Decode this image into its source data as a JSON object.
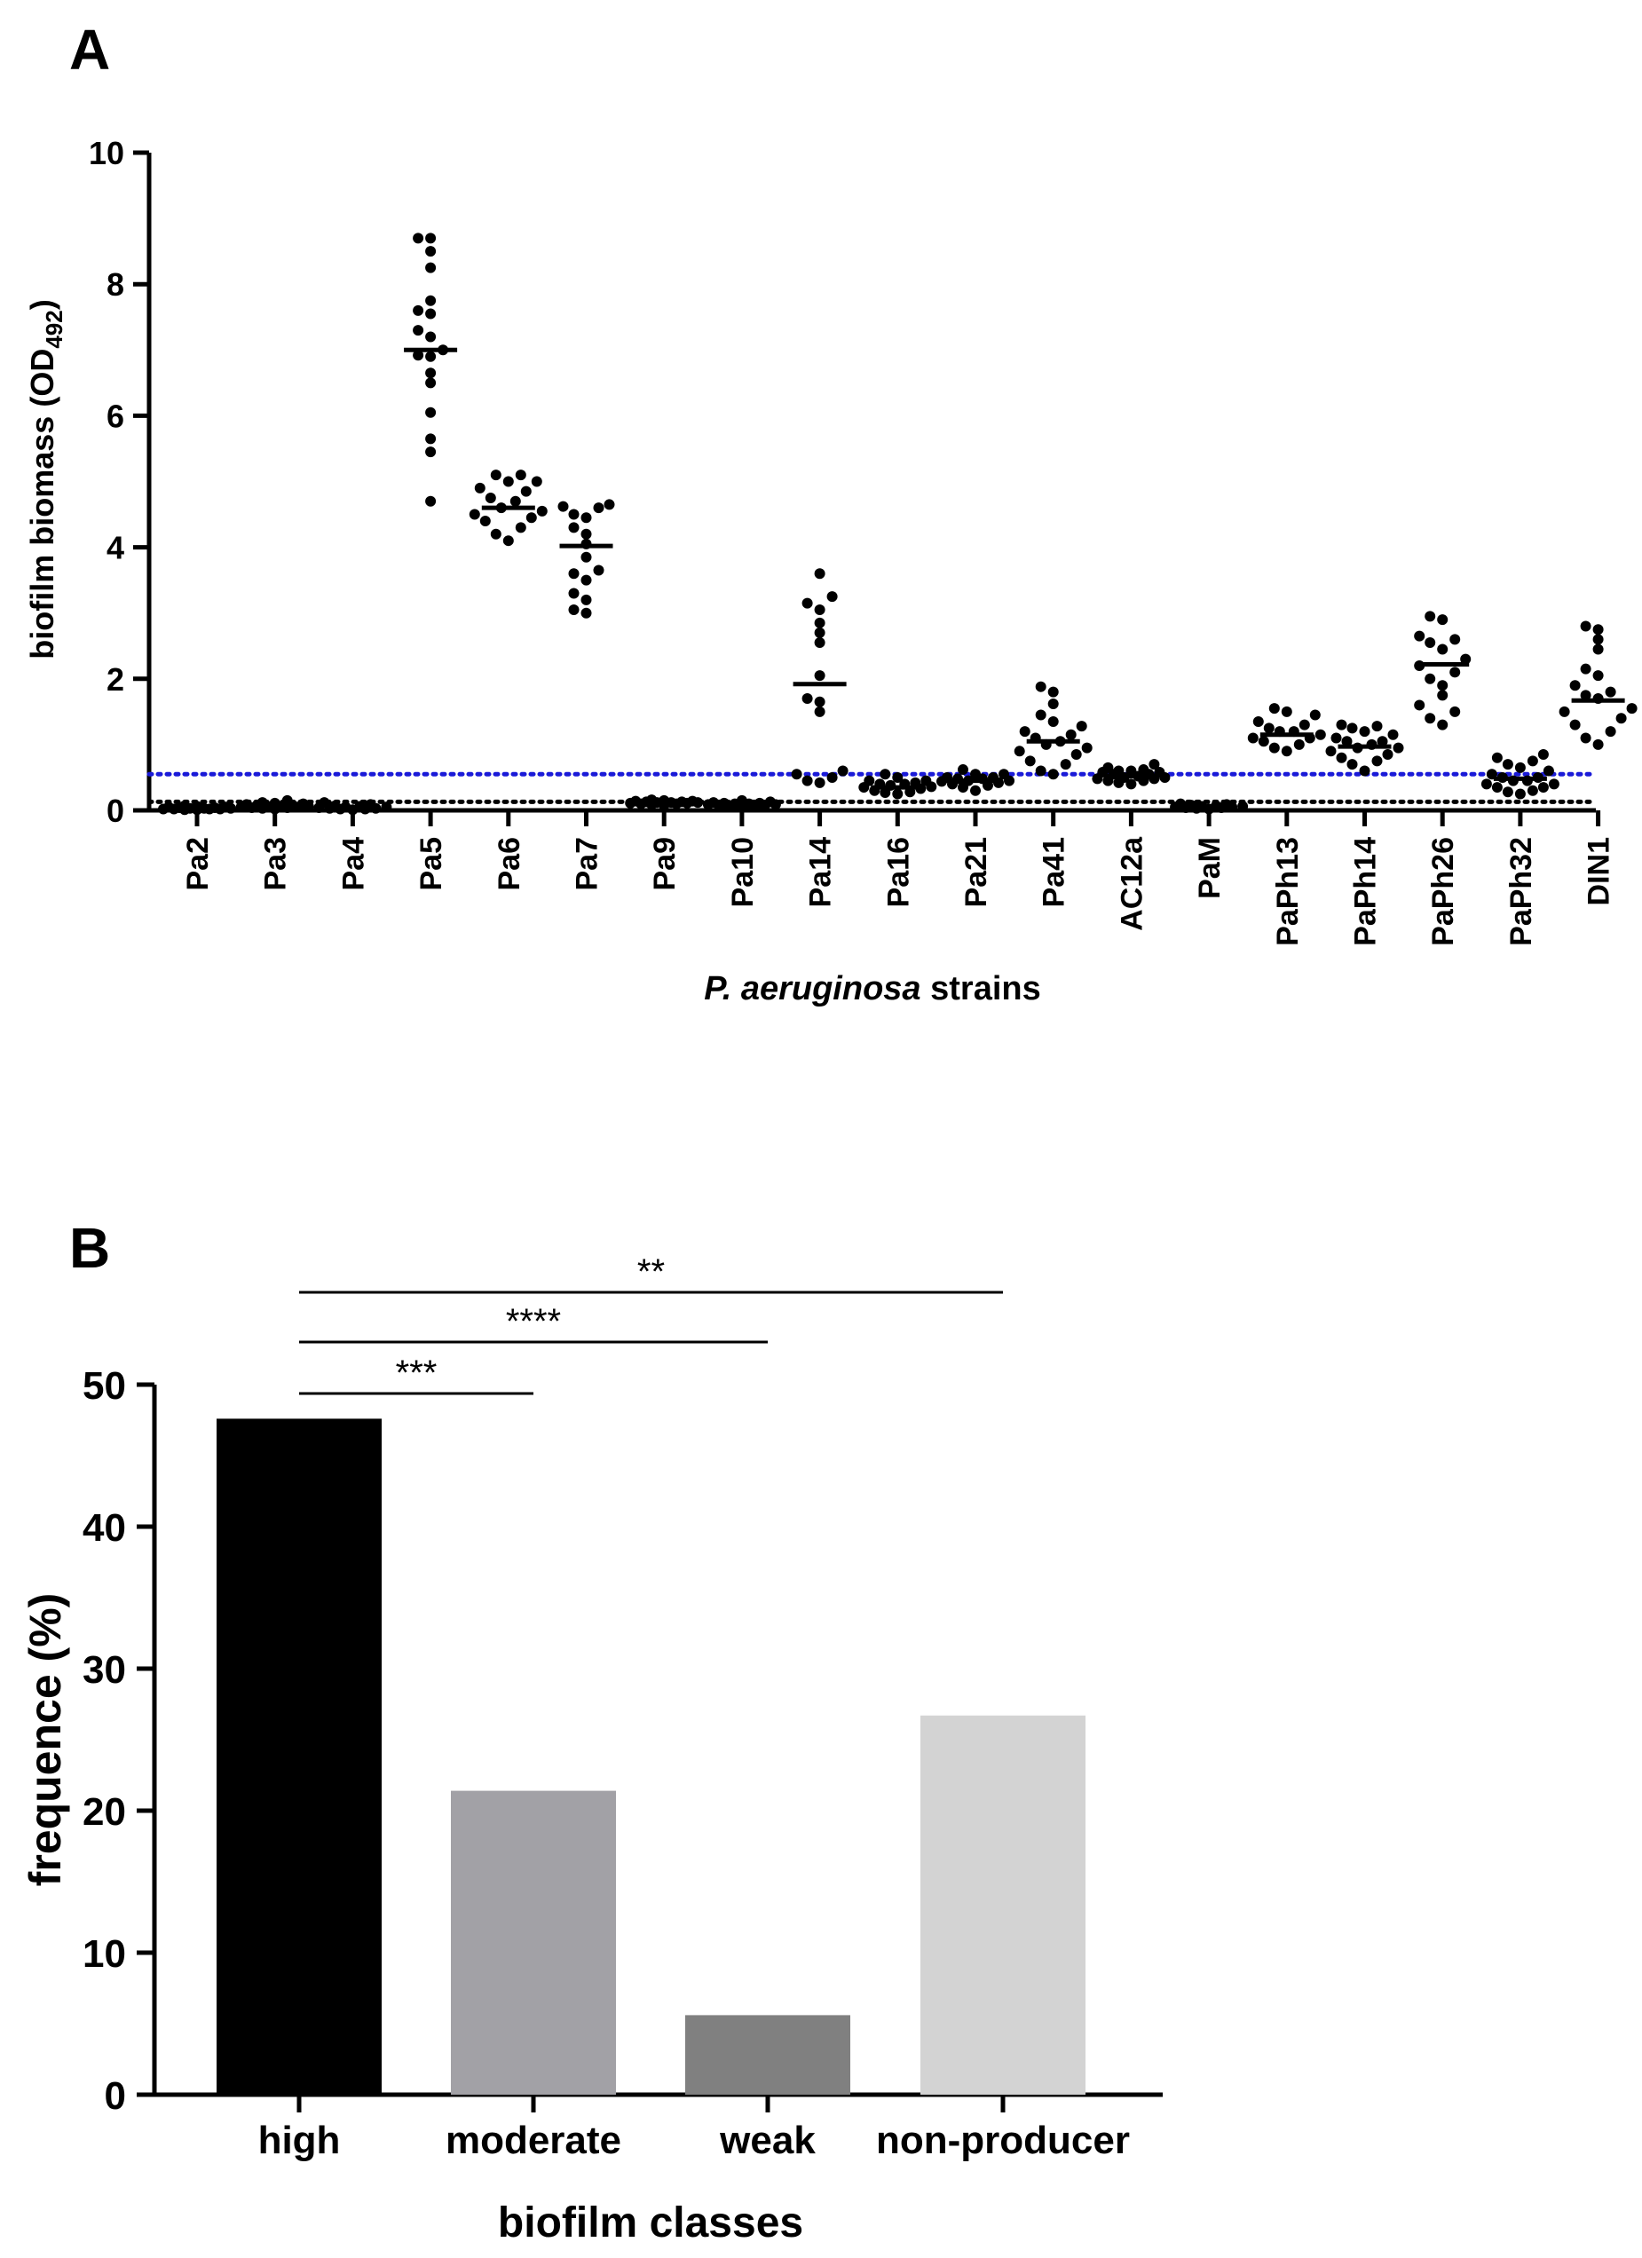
{
  "chart_data": [
    {
      "panel_label": "A",
      "type": "scatter",
      "title": "",
      "ylabel_main": "biofilm biomass (OD",
      "ylabel_sub": "492",
      "ylabel_close": ")",
      "xlabel_italic": "P. aeruginosa",
      "xlabel_rest": " strains",
      "ylim": [
        0,
        10
      ],
      "yticks": [
        "0",
        "2",
        "4",
        "6",
        "8",
        "10"
      ],
      "ytick_values": [
        0,
        2,
        4,
        6,
        8,
        10
      ],
      "reference_lines": [
        {
          "name": "cutoff-blue",
          "value": 0.55,
          "color": "#1a1ad8",
          "style": "dotted"
        },
        {
          "name": "cutoff-black",
          "value": 0.13,
          "color": "#000000",
          "style": "dotted"
        }
      ],
      "categories": [
        "Pa2",
        "Pa3",
        "Pa4",
        "Pa5",
        "Pa6",
        "Pa7",
        "Pa9",
        "Pa10",
        "Pa14",
        "Pa16",
        "Pa21",
        "Pa41",
        "AC12a",
        "PaM",
        "PaPh13",
        "PaPh14",
        "PaPh26",
        "PaPh32",
        "DIN1"
      ],
      "medians": [
        0.03,
        0.06,
        0.04,
        7.0,
        4.6,
        4.02,
        0.12,
        0.09,
        1.92,
        0.35,
        0.45,
        1.05,
        0.52,
        0.05,
        1.15,
        0.97,
        2.22,
        0.48,
        1.67
      ],
      "points": [
        [
          0.01,
          0.02,
          0.03,
          0.04,
          0.05,
          0.02,
          0.06,
          0.01,
          0.03,
          0.07,
          0.02,
          0.04,
          0.05,
          0.03,
          0.02
        ],
        [
          0.02,
          0.04,
          0.05,
          0.06,
          0.08,
          0.1,
          0.12,
          0.15,
          0.03,
          0.07,
          0.09,
          0.05,
          0.11,
          0.04,
          0.06,
          0.08
        ],
        [
          0.01,
          0.02,
          0.03,
          0.05,
          0.07,
          0.09,
          0.12,
          0.04,
          0.06,
          0.02,
          0.03,
          0.05
        ],
        [
          8.7,
          8.7,
          8.5,
          8.25,
          7.75,
          7.6,
          7.55,
          7.3,
          7.2,
          7.0,
          6.92,
          6.9,
          6.65,
          6.5,
          6.05,
          5.65,
          5.45,
          4.7
        ],
        [
          5.1,
          5.1,
          5.0,
          5.0,
          4.9,
          4.85,
          4.75,
          4.7,
          4.6,
          4.55,
          4.5,
          4.45,
          4.4,
          4.3,
          4.2,
          4.1
        ],
        [
          4.65,
          4.62,
          4.6,
          4.5,
          4.45,
          4.3,
          4.2,
          4.05,
          3.85,
          3.65,
          3.6,
          3.5,
          3.3,
          3.2,
          3.05,
          3.0
        ],
        [
          0.08,
          0.1,
          0.11,
          0.12,
          0.13,
          0.14,
          0.15,
          0.16,
          0.12,
          0.1,
          0.09,
          0.13,
          0.14,
          0.11,
          0.12
        ],
        [
          0.05,
          0.07,
          0.08,
          0.09,
          0.1,
          0.11,
          0.12,
          0.13,
          0.15,
          0.08,
          0.1,
          0.06,
          0.09,
          0.11
        ],
        [
          3.6,
          3.25,
          3.15,
          3.05,
          2.85,
          2.7,
          2.55,
          2.05,
          1.7,
          1.65,
          1.5,
          0.6,
          0.55,
          0.5,
          0.45,
          0.42
        ],
        [
          0.55,
          0.5,
          0.45,
          0.42,
          0.4,
          0.38,
          0.36,
          0.35,
          0.33,
          0.3,
          0.28,
          0.27,
          0.25,
          0.4,
          0.45
        ],
        [
          0.62,
          0.55,
          0.5,
          0.48,
          0.45,
          0.44,
          0.42,
          0.4,
          0.38,
          0.3,
          0.5,
          0.55,
          0.35,
          0.45,
          0.48
        ],
        [
          1.88,
          1.8,
          1.62,
          1.45,
          1.35,
          1.28,
          1.2,
          1.15,
          1.1,
          1.05,
          1.0,
          0.95,
          0.9,
          0.85,
          0.75,
          0.7,
          0.6,
          0.55
        ],
        [
          0.7,
          0.65,
          0.62,
          0.6,
          0.58,
          0.55,
          0.52,
          0.5,
          0.48,
          0.45,
          0.42,
          0.4,
          0.58,
          0.55,
          0.6,
          0.5,
          0.45,
          0.48
        ],
        [
          0.02,
          0.04,
          0.06,
          0.08,
          0.1,
          0.05,
          0.07,
          0.03,
          0.09,
          0.04,
          0.06,
          0.05
        ],
        [
          1.55,
          1.5,
          1.45,
          1.3,
          1.25,
          1.2,
          1.15,
          1.1,
          1.05,
          1.0,
          0.95,
          0.9,
          1.2,
          1.35,
          1.1
        ],
        [
          1.3,
          1.28,
          1.25,
          1.2,
          1.15,
          1.1,
          1.05,
          1.0,
          0.95,
          0.9,
          0.85,
          0.8,
          0.75,
          0.7,
          0.6,
          1.05,
          0.95
        ],
        [
          2.95,
          2.9,
          2.65,
          2.6,
          2.55,
          2.45,
          2.3,
          2.2,
          2.1,
          2.0,
          1.9,
          1.75,
          1.6,
          1.5,
          1.4,
          1.3
        ],
        [
          0.85,
          0.8,
          0.75,
          0.7,
          0.65,
          0.6,
          0.55,
          0.5,
          0.45,
          0.4,
          0.35,
          0.3,
          0.28,
          0.25,
          0.5,
          0.45,
          0.4,
          0.35
        ],
        [
          2.8,
          2.75,
          2.6,
          2.45,
          2.15,
          2.05,
          1.9,
          1.8,
          1.75,
          1.7,
          1.55,
          1.5,
          1.4,
          1.3,
          1.2,
          1.1,
          1.0
        ]
      ]
    },
    {
      "panel_label": "B",
      "type": "bar",
      "title": "",
      "xlabel": "biofilm classes",
      "ylabel": "frequence (%)",
      "ylim": [
        0,
        50
      ],
      "yticks": [
        "0",
        "10",
        "20",
        "30",
        "40",
        "50"
      ],
      "ytick_values": [
        0,
        10,
        20,
        30,
        40,
        50
      ],
      "categories": [
        "high",
        "moderate",
        "weak",
        "non-producer"
      ],
      "values": [
        47.6,
        21.4,
        5.6,
        26.7
      ],
      "colors": [
        "#000000",
        "#a2a1a6",
        "#808080",
        "#d3d3d3"
      ],
      "significance": [
        {
          "from": "high",
          "to": "non-producer",
          "label": "**"
        },
        {
          "from": "high",
          "to": "weak",
          "label": "****"
        },
        {
          "from": "high",
          "to": "moderate",
          "label": "***"
        }
      ]
    }
  ]
}
